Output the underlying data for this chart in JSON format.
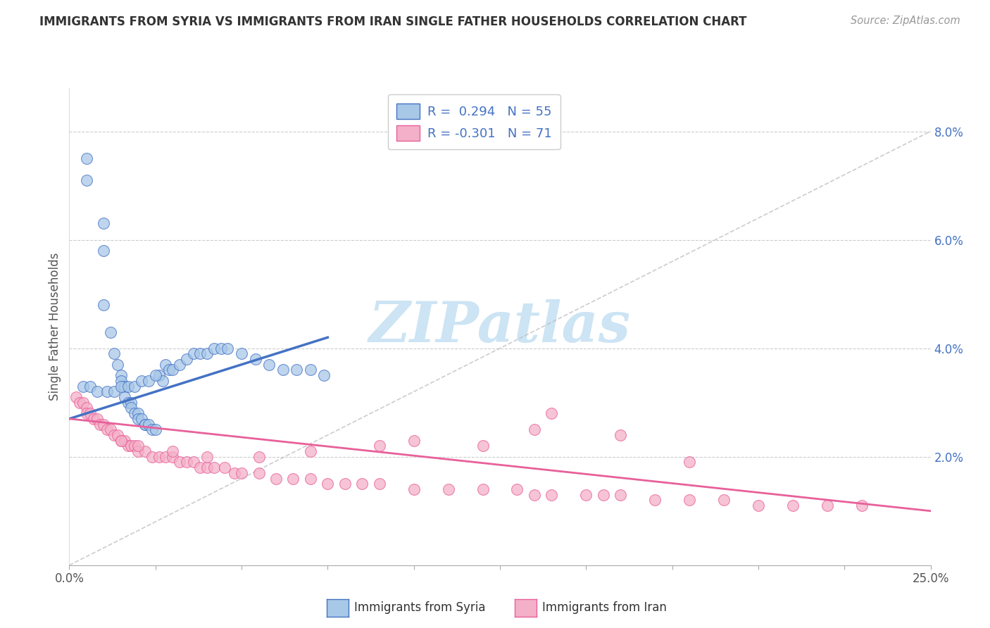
{
  "title": "IMMIGRANTS FROM SYRIA VS IMMIGRANTS FROM IRAN SINGLE FATHER HOUSEHOLDS CORRELATION CHART",
  "source": "Source: ZipAtlas.com",
  "ylabel": "Single Father Households",
  "legend_label1": "Immigrants from Syria",
  "legend_label2": "Immigrants from Iran",
  "legend_R1": "R =  0.294",
  "legend_N1": "N = 55",
  "legend_R2": "R = -0.301",
  "legend_N2": "N = 71",
  "xlim": [
    0.0,
    0.25
  ],
  "ylim": [
    0.0,
    0.088
  ],
  "yticks": [
    0.02,
    0.04,
    0.06,
    0.08
  ],
  "ytick_labels": [
    "2.0%",
    "4.0%",
    "6.0%",
    "8.0%"
  ],
  "xticks": [
    0.0,
    0.025,
    0.05,
    0.075,
    0.1,
    0.125,
    0.15,
    0.175,
    0.2,
    0.225,
    0.25
  ],
  "color_syria": "#a8c8e8",
  "color_iran": "#f4b0c8",
  "color_syria_line": "#4472c4",
  "color_iran_line": "#e8609a",
  "color_ref_line": "#c0c0c0",
  "background_color": "#ffffff",
  "watermark_color": "#cce4f4",
  "syria_x": [
    0.005,
    0.005,
    0.01,
    0.01,
    0.01,
    0.012,
    0.013,
    0.014,
    0.015,
    0.015,
    0.016,
    0.016,
    0.017,
    0.018,
    0.018,
    0.019,
    0.02,
    0.02,
    0.021,
    0.022,
    0.022,
    0.023,
    0.024,
    0.025,
    0.026,
    0.027,
    0.028,
    0.029,
    0.03,
    0.032,
    0.034,
    0.036,
    0.038,
    0.04,
    0.042,
    0.044,
    0.046,
    0.05,
    0.054,
    0.058,
    0.062,
    0.066,
    0.07,
    0.074,
    0.004,
    0.006,
    0.008,
    0.011,
    0.013,
    0.015,
    0.017,
    0.019,
    0.021,
    0.023,
    0.025
  ],
  "syria_y": [
    0.075,
    0.071,
    0.063,
    0.058,
    0.048,
    0.043,
    0.039,
    0.037,
    0.035,
    0.034,
    0.033,
    0.031,
    0.03,
    0.03,
    0.029,
    0.028,
    0.028,
    0.027,
    0.027,
    0.026,
    0.026,
    0.026,
    0.025,
    0.025,
    0.035,
    0.034,
    0.037,
    0.036,
    0.036,
    0.037,
    0.038,
    0.039,
    0.039,
    0.039,
    0.04,
    0.04,
    0.04,
    0.039,
    0.038,
    0.037,
    0.036,
    0.036,
    0.036,
    0.035,
    0.033,
    0.033,
    0.032,
    0.032,
    0.032,
    0.033,
    0.033,
    0.033,
    0.034,
    0.034,
    0.035
  ],
  "iran_x": [
    0.002,
    0.003,
    0.004,
    0.005,
    0.005,
    0.006,
    0.007,
    0.008,
    0.009,
    0.01,
    0.011,
    0.012,
    0.013,
    0.014,
    0.015,
    0.016,
    0.017,
    0.018,
    0.019,
    0.02,
    0.022,
    0.024,
    0.026,
    0.028,
    0.03,
    0.032,
    0.034,
    0.036,
    0.038,
    0.04,
    0.042,
    0.045,
    0.048,
    0.05,
    0.055,
    0.06,
    0.065,
    0.07,
    0.075,
    0.08,
    0.085,
    0.09,
    0.1,
    0.11,
    0.12,
    0.13,
    0.135,
    0.14,
    0.15,
    0.155,
    0.16,
    0.17,
    0.18,
    0.19,
    0.2,
    0.21,
    0.22,
    0.23,
    0.14,
    0.16,
    0.18,
    0.135,
    0.1,
    0.12,
    0.09,
    0.07,
    0.055,
    0.04,
    0.03,
    0.02,
    0.015
  ],
  "iran_y": [
    0.031,
    0.03,
    0.03,
    0.029,
    0.028,
    0.028,
    0.027,
    0.027,
    0.026,
    0.026,
    0.025,
    0.025,
    0.024,
    0.024,
    0.023,
    0.023,
    0.022,
    0.022,
    0.022,
    0.021,
    0.021,
    0.02,
    0.02,
    0.02,
    0.02,
    0.019,
    0.019,
    0.019,
    0.018,
    0.018,
    0.018,
    0.018,
    0.017,
    0.017,
    0.017,
    0.016,
    0.016,
    0.016,
    0.015,
    0.015,
    0.015,
    0.015,
    0.014,
    0.014,
    0.014,
    0.014,
    0.013,
    0.013,
    0.013,
    0.013,
    0.013,
    0.012,
    0.012,
    0.012,
    0.011,
    0.011,
    0.011,
    0.011,
    0.028,
    0.024,
    0.019,
    0.025,
    0.023,
    0.022,
    0.022,
    0.021,
    0.02,
    0.02,
    0.021,
    0.022,
    0.023
  ],
  "syria_trend_x": [
    0.0,
    0.075
  ],
  "syria_trend_start_y": 0.027,
  "syria_trend_end_y": 0.042,
  "iran_trend_x": [
    0.0,
    0.25
  ],
  "iran_trend_start_y": 0.027,
  "iran_trend_end_y": 0.01
}
